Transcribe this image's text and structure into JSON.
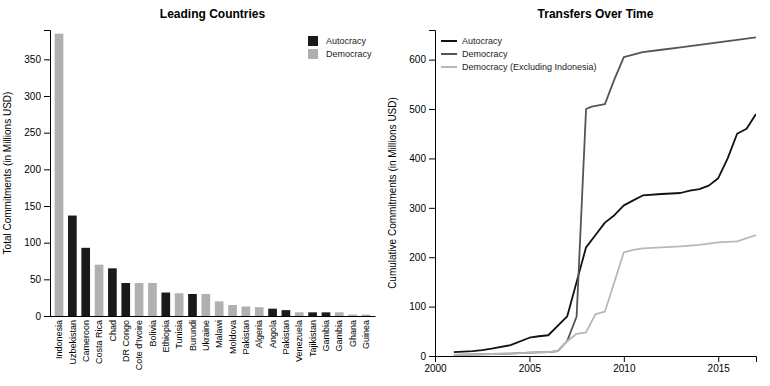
{
  "chart_data": [
    {
      "type": "bar",
      "title": "Leading Countries",
      "ylabel": "Total Commitments (in Millions USD)",
      "categories": [
        "Indonesia",
        "Uzbekistan",
        "Cameroon",
        "Costa Rica",
        "Chad",
        "DR Congo",
        "Cote d'Ivoire",
        "Bolivia",
        "Ethiopia",
        "Tunisia",
        "Burundi",
        "Ukraine",
        "Malawi",
        "Moldova",
        "Pakistan",
        "Algeria",
        "Angola",
        "Pakistan",
        "Venezuela",
        "Tajikistan",
        "Gambia",
        "Gambia",
        "Ghana",
        "Guinea"
      ],
      "series": [
        {
          "name": "Autocracy",
          "color": "#1a1a1a",
          "values": [
            null,
            137,
            93,
            null,
            65,
            45,
            null,
            null,
            32,
            null,
            30,
            null,
            null,
            null,
            null,
            null,
            10,
            8,
            null,
            5,
            5,
            null,
            null,
            null
          ]
        },
        {
          "name": "Democracy",
          "color": "#b0b0b0",
          "values": [
            385,
            null,
            null,
            70,
            null,
            null,
            45,
            45,
            null,
            31,
            null,
            30,
            20,
            15,
            13,
            12,
            null,
            null,
            5,
            null,
            null,
            5,
            2,
            2
          ]
        }
      ],
      "stacked": true,
      "ylim": [
        0,
        390
      ],
      "yticks": [
        0,
        50,
        100,
        150,
        200,
        250,
        300,
        350
      ],
      "grid": false,
      "legend": "upper right"
    },
    {
      "type": "line",
      "title": "Transfers Over Time",
      "ylabel": "Cumulative Commitments (in Millions USD)",
      "series": [
        {
          "name": "Autocracy",
          "color": "#111111",
          "x": [
            2001,
            2002,
            2002.5,
            2003,
            2004,
            2005,
            2005.5,
            2006,
            2007,
            2007.5,
            2008,
            2008.5,
            2009,
            2009.5,
            2010,
            2010.5,
            2011,
            2012,
            2013,
            2013.5,
            2014,
            2014.5,
            2015,
            2015.5,
            2016,
            2016.5,
            2017
          ],
          "values": [
            8,
            10,
            12,
            15,
            22,
            37,
            40,
            42,
            80,
            150,
            220,
            245,
            270,
            285,
            305,
            315,
            325,
            328,
            330,
            335,
            338,
            345,
            360,
            400,
            450,
            460,
            490
          ]
        },
        {
          "name": "Democracy",
          "color": "#555555",
          "x": [
            2001,
            2002,
            2003,
            2004,
            2005,
            2006,
            2006.5,
            2007,
            2007.5,
            2008,
            2008.3,
            2009,
            2009.5,
            2010,
            2010.5,
            2011,
            2012,
            2013,
            2014,
            2015,
            2016,
            2017
          ],
          "values": [
            2,
            3,
            4,
            5,
            7,
            8,
            10,
            30,
            80,
            500,
            505,
            510,
            560,
            605,
            610,
            615,
            620,
            625,
            630,
            635,
            640,
            645
          ]
        },
        {
          "name": "Democracy (Excluding Indonesia)",
          "color": "#b8b8b8",
          "x": [
            2001,
            2002,
            2003,
            2004,
            2005,
            2006,
            2006.5,
            2007,
            2007.5,
            2008,
            2008.5,
            2009,
            2009.5,
            2010,
            2010.5,
            2011,
            2012,
            2013,
            2014,
            2015,
            2016,
            2017
          ],
          "values": [
            2,
            3,
            4,
            5,
            7,
            8,
            10,
            30,
            45,
            48,
            85,
            90,
            150,
            210,
            215,
            218,
            220,
            222,
            225,
            230,
            232,
            245
          ]
        }
      ],
      "xlim": [
        2000,
        2017
      ],
      "xticks": [
        2000,
        2005,
        2010,
        2015
      ],
      "ylim": [
        0,
        660
      ],
      "yticks": [
        0,
        100,
        200,
        300,
        400,
        500,
        600
      ],
      "grid": false,
      "legend": "upper left"
    }
  ]
}
